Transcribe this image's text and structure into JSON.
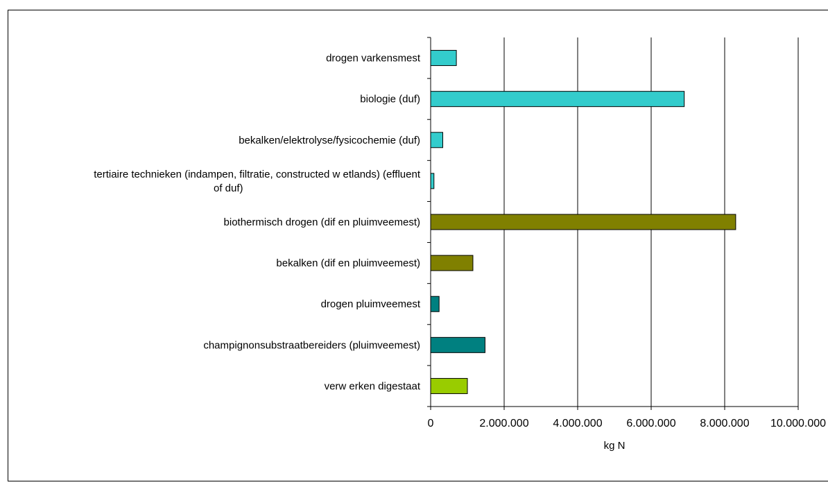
{
  "chart_data": {
    "type": "bar",
    "orientation": "horizontal",
    "categories": [
      "drogen varkensmest",
      "biologie (duf)",
      "bekalken/elektrolyse/fysicochemie (duf)",
      [
        "tertiaire technieken (indampen, filtratie, constructed w etlands) (effluent",
        "of duf)"
      ],
      "biothermisch drogen (dif en pluimveemest)",
      "bekalken (dif en pluimveemest)",
      "drogen pluimveemest",
      "champignonsubstraatbereiders (pluimveemest)",
      "verw erken digestaat"
    ],
    "values": [
      700000,
      6900000,
      330000,
      90000,
      8300000,
      1150000,
      230000,
      1480000,
      1000000
    ],
    "colors": [
      "#33cccc",
      "#33cccc",
      "#33cccc",
      "#33cccc",
      "#808000",
      "#808000",
      "#008080",
      "#008080",
      "#99cc00"
    ],
    "xlim": [
      0,
      10000000
    ],
    "xticks": [
      0,
      2000000,
      4000000,
      6000000,
      8000000,
      10000000
    ],
    "xtick_labels": [
      "0",
      "2.000.000",
      "4.000.000",
      "6.000.000",
      "8.000.000",
      "10.000.000"
    ],
    "xlabel": "kg N",
    "grid": true
  }
}
